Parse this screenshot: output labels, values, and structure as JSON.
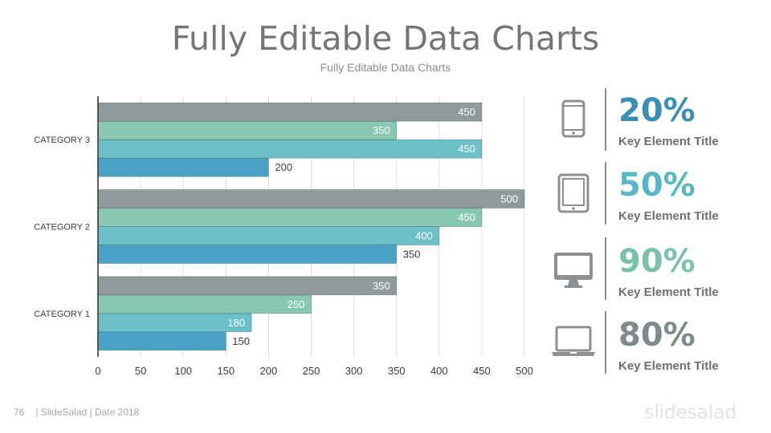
{
  "slide": {
    "title": "Fully Editable Data Charts",
    "subtitle": "Fully Editable Data Charts"
  },
  "chart_data": {
    "type": "bar",
    "orientation": "horizontal",
    "categories": [
      "CATEGORY 1",
      "CATEGORY 2",
      "CATEGORY 3"
    ],
    "series": [
      {
        "color": "#4aa3c6",
        "values": [
          150,
          350,
          200
        ]
      },
      {
        "color": "#6cc0c8",
        "values": [
          180,
          400,
          450
        ]
      },
      {
        "color": "#88c8b2",
        "values": [
          250,
          450,
          350
        ]
      },
      {
        "color": "#8e9a9c",
        "values": [
          350,
          500,
          450
        ]
      }
    ],
    "xlim": [
      0,
      500
    ],
    "xticks": [
      "0",
      "50",
      "100",
      "150",
      "200",
      "250",
      "300",
      "350",
      "400",
      "450",
      "500"
    ],
    "grid": true,
    "data_labels": true
  },
  "kpis": [
    {
      "icon": "smartphone-icon",
      "value": "20%",
      "title": "Key Element Title",
      "color": "#3a8fb7"
    },
    {
      "icon": "tablet-icon",
      "value": "50%",
      "title": "Key Element Title",
      "color": "#59b6c5"
    },
    {
      "icon": "monitor-icon",
      "value": "90%",
      "title": "Key Element Title",
      "color": "#79c2a9"
    },
    {
      "icon": "laptop-icon",
      "value": "80%",
      "title": "Key Element Title",
      "color": "#7e8a8c"
    }
  ],
  "footer": {
    "page_number": "76",
    "text": "| SlideSalad | Date 2018"
  },
  "brand": "slidesalad"
}
